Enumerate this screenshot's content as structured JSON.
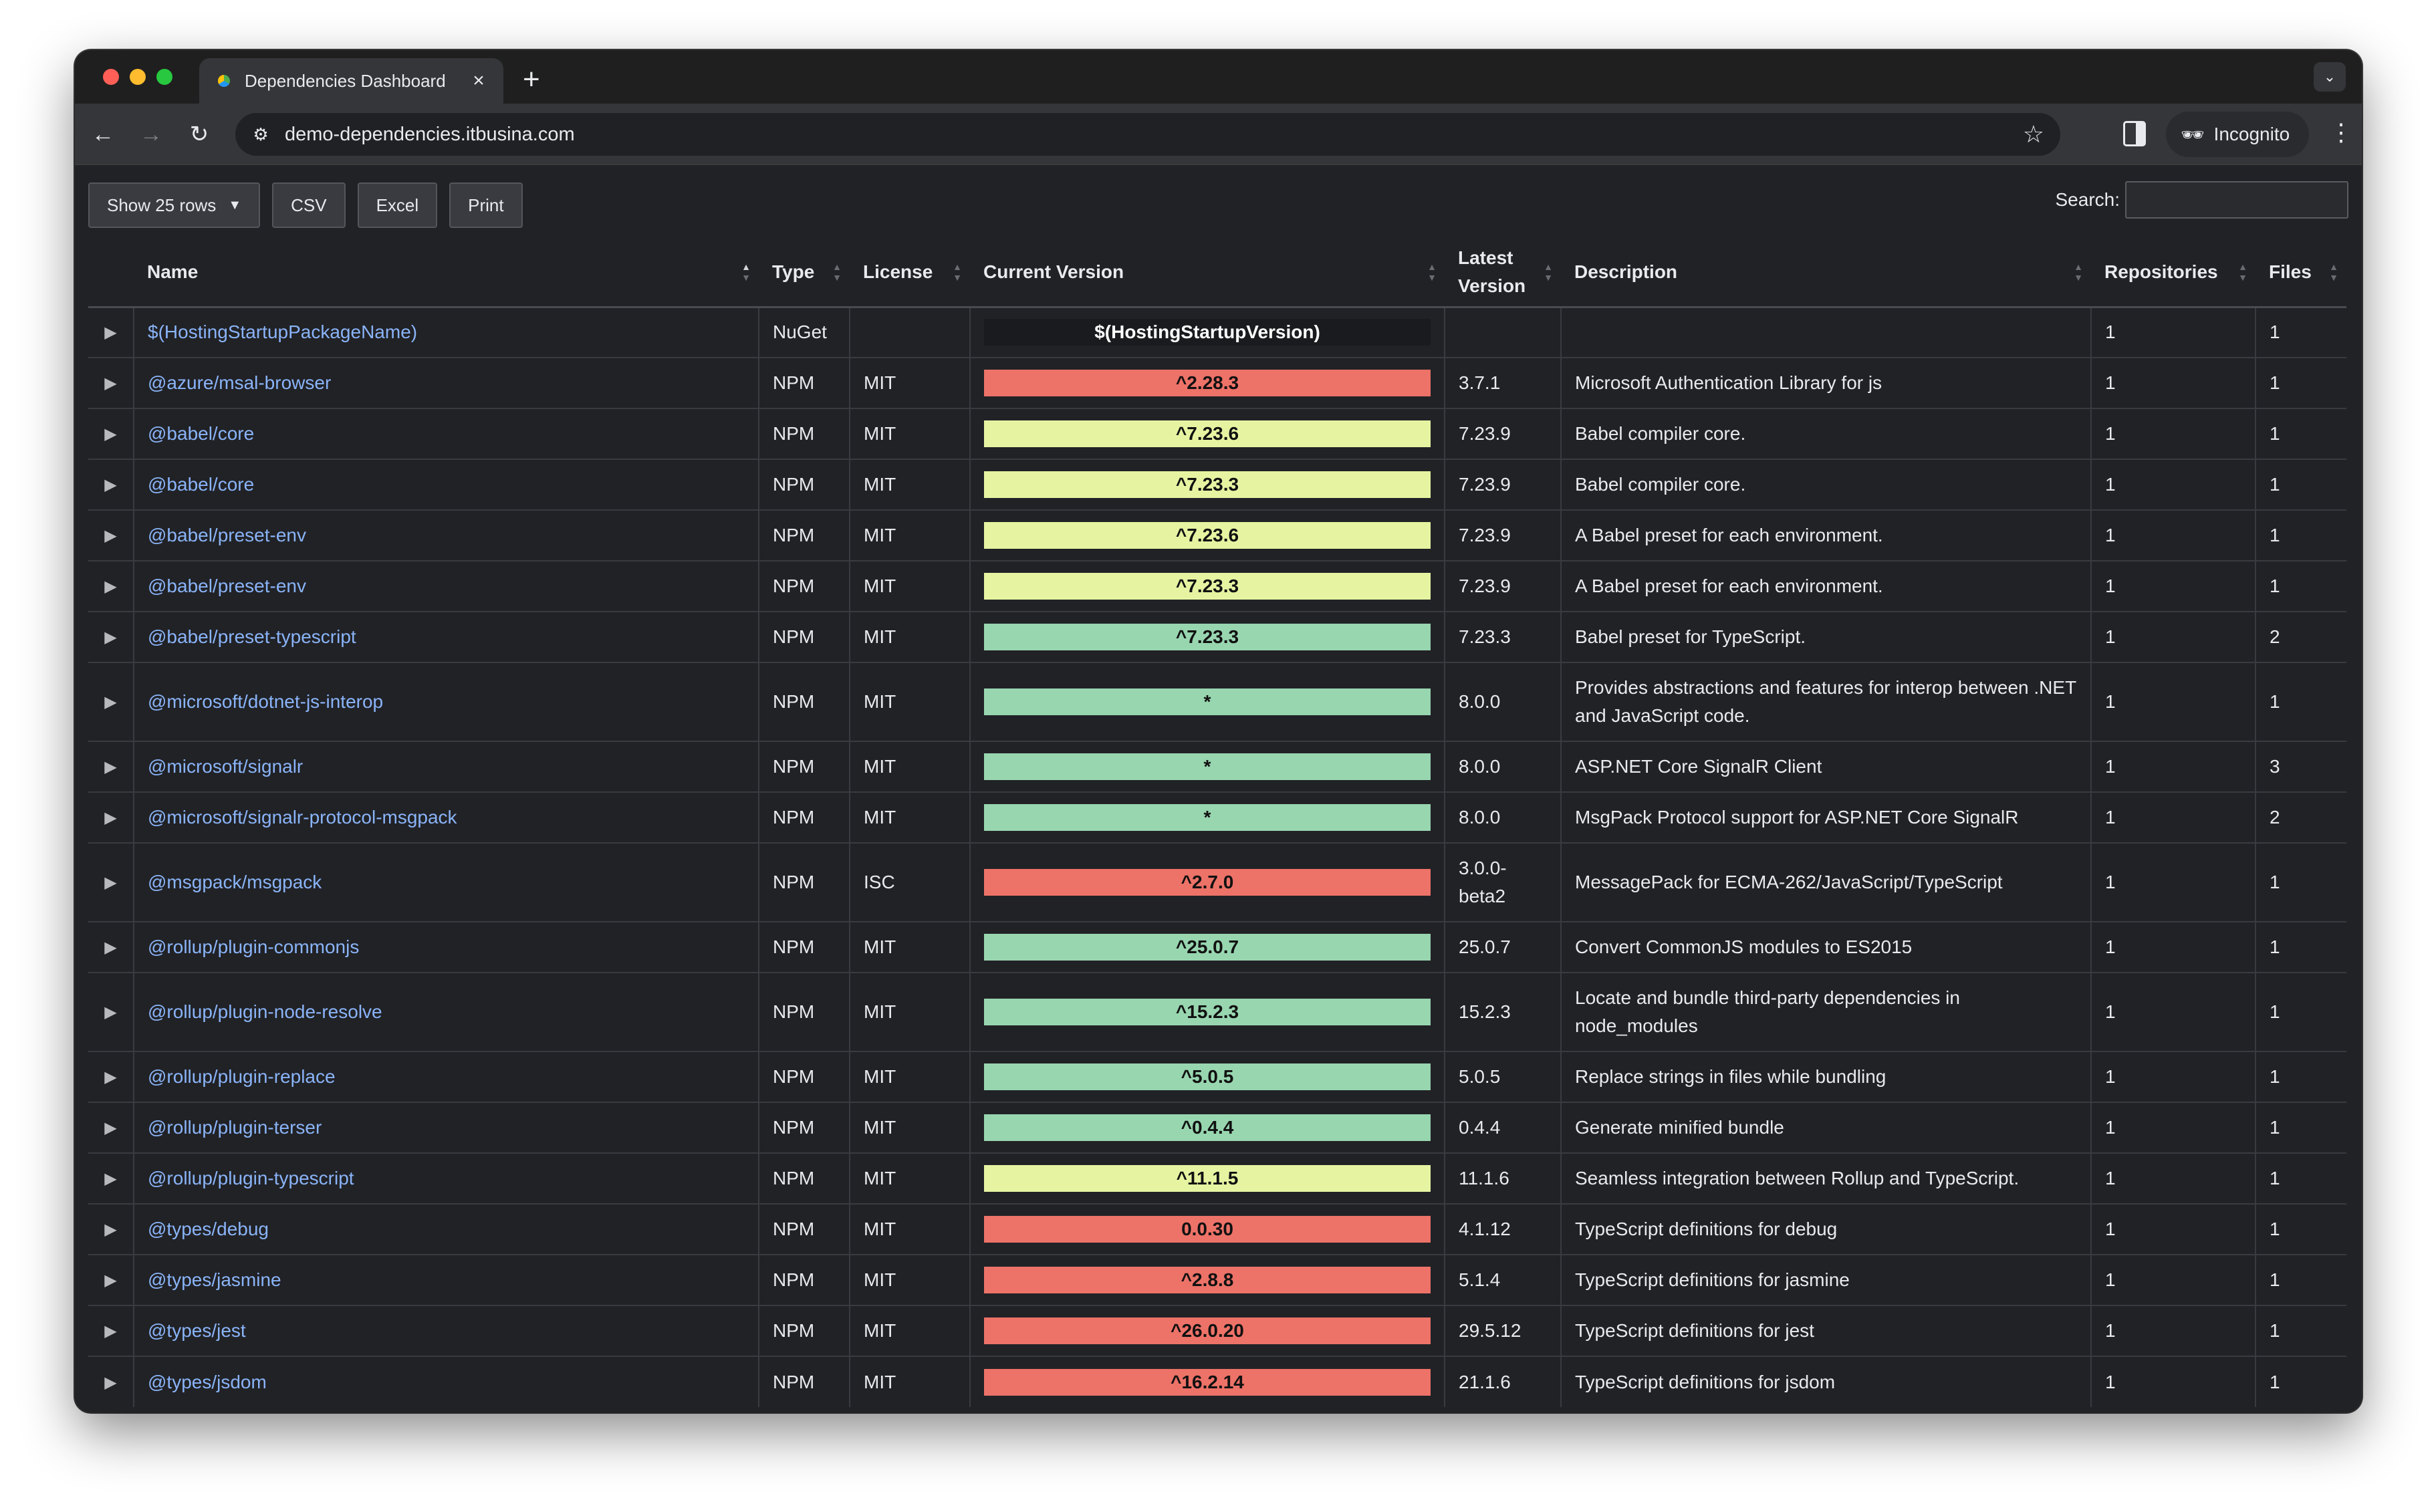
{
  "browser": {
    "tab_title": "Dependencies Dashboard",
    "tab_close": "×",
    "new_tab": "+",
    "url": "demo-dependencies.itbusina.com",
    "profile_label": "Incognito"
  },
  "toolbar": {
    "show_rows_label": "Show 25 rows",
    "csv_label": "CSV",
    "excel_label": "Excel",
    "print_label": "Print",
    "search_label": "Search:",
    "search_value": ""
  },
  "table": {
    "headers": {
      "name": "Name",
      "type": "Type",
      "license": "License",
      "current_version": "Current Version",
      "latest_version": "Latest Version",
      "description": "Description",
      "repositories": "Repositories",
      "files": "Files"
    },
    "status_colors": {
      "outdated": "#ed7268",
      "minor": "#e6f4a2",
      "current": "#98d6b0",
      "unknown": "#1a1b1e"
    },
    "rows": [
      {
        "name": "$(HostingStartupPackageName)",
        "type": "NuGet",
        "license": "",
        "current": "$(HostingStartupVersion)",
        "status": "unknown",
        "latest": "",
        "description": "",
        "repos": "1",
        "files": "1"
      },
      {
        "name": "@azure/msal-browser",
        "type": "NPM",
        "license": "MIT",
        "current": "^2.28.3",
        "status": "outdated",
        "latest": "3.7.1",
        "description": "Microsoft Authentication Library for js",
        "repos": "1",
        "files": "1"
      },
      {
        "name": "@babel/core",
        "type": "NPM",
        "license": "MIT",
        "current": "^7.23.6",
        "status": "minor",
        "latest": "7.23.9",
        "description": "Babel compiler core.",
        "repos": "1",
        "files": "1"
      },
      {
        "name": "@babel/core",
        "type": "NPM",
        "license": "MIT",
        "current": "^7.23.3",
        "status": "minor",
        "latest": "7.23.9",
        "description": "Babel compiler core.",
        "repos": "1",
        "files": "1"
      },
      {
        "name": "@babel/preset-env",
        "type": "NPM",
        "license": "MIT",
        "current": "^7.23.6",
        "status": "minor",
        "latest": "7.23.9",
        "description": "A Babel preset for each environment.",
        "repos": "1",
        "files": "1"
      },
      {
        "name": "@babel/preset-env",
        "type": "NPM",
        "license": "MIT",
        "current": "^7.23.3",
        "status": "minor",
        "latest": "7.23.9",
        "description": "A Babel preset for each environment.",
        "repos": "1",
        "files": "1"
      },
      {
        "name": "@babel/preset-typescript",
        "type": "NPM",
        "license": "MIT",
        "current": "^7.23.3",
        "status": "current",
        "latest": "7.23.3",
        "description": "Babel preset for TypeScript.",
        "repos": "1",
        "files": "2"
      },
      {
        "name": "@microsoft/dotnet-js-interop",
        "type": "NPM",
        "license": "MIT",
        "current": "*",
        "status": "current",
        "latest": "8.0.0",
        "description": "Provides abstractions and features for interop between .NET and JavaScript code.",
        "repos": "1",
        "files": "1",
        "tall": true
      },
      {
        "name": "@microsoft/signalr",
        "type": "NPM",
        "license": "MIT",
        "current": "*",
        "status": "current",
        "latest": "8.0.0",
        "description": "ASP.NET Core SignalR Client",
        "repos": "1",
        "files": "3"
      },
      {
        "name": "@microsoft/signalr-protocol-msgpack",
        "type": "NPM",
        "license": "MIT",
        "current": "*",
        "status": "current",
        "latest": "8.0.0",
        "description": "MsgPack Protocol support for ASP.NET Core SignalR",
        "repos": "1",
        "files": "2"
      },
      {
        "name": "@msgpack/msgpack",
        "type": "NPM",
        "license": "ISC",
        "current": "^2.7.0",
        "status": "outdated",
        "latest": "3.0.0-beta2",
        "description": "MessagePack for ECMA-262/JavaScript/TypeScript",
        "repos": "1",
        "files": "1",
        "tall": true
      },
      {
        "name": "@rollup/plugin-commonjs",
        "type": "NPM",
        "license": "MIT",
        "current": "^25.0.7",
        "status": "current",
        "latest": "25.0.7",
        "description": "Convert CommonJS modules to ES2015",
        "repos": "1",
        "files": "1"
      },
      {
        "name": "@rollup/plugin-node-resolve",
        "type": "NPM",
        "license": "MIT",
        "current": "^15.2.3",
        "status": "current",
        "latest": "15.2.3",
        "description": "Locate and bundle third-party dependencies in node_modules",
        "repos": "1",
        "files": "1",
        "tall": true
      },
      {
        "name": "@rollup/plugin-replace",
        "type": "NPM",
        "license": "MIT",
        "current": "^5.0.5",
        "status": "current",
        "latest": "5.0.5",
        "description": "Replace strings in files while bundling",
        "repos": "1",
        "files": "1"
      },
      {
        "name": "@rollup/plugin-terser",
        "type": "NPM",
        "license": "MIT",
        "current": "^0.4.4",
        "status": "current",
        "latest": "0.4.4",
        "description": "Generate minified bundle",
        "repos": "1",
        "files": "1"
      },
      {
        "name": "@rollup/plugin-typescript",
        "type": "NPM",
        "license": "MIT",
        "current": "^11.1.5",
        "status": "minor",
        "latest": "11.1.6",
        "description": "Seamless integration between Rollup and TypeScript.",
        "repos": "1",
        "files": "1"
      },
      {
        "name": "@types/debug",
        "type": "NPM",
        "license": "MIT",
        "current": "0.0.30",
        "status": "outdated",
        "latest": "4.1.12",
        "description": "TypeScript definitions for debug",
        "repos": "1",
        "files": "1"
      },
      {
        "name": "@types/jasmine",
        "type": "NPM",
        "license": "MIT",
        "current": "^2.8.8",
        "status": "outdated",
        "latest": "5.1.4",
        "description": "TypeScript definitions for jasmine",
        "repos": "1",
        "files": "1"
      },
      {
        "name": "@types/jest",
        "type": "NPM",
        "license": "MIT",
        "current": "^26.0.20",
        "status": "outdated",
        "latest": "29.5.12",
        "description": "TypeScript definitions for jest",
        "repos": "1",
        "files": "1"
      },
      {
        "name": "@types/jsdom",
        "type": "NPM",
        "license": "MIT",
        "current": "^16.2.14",
        "status": "outdated",
        "latest": "21.1.6",
        "description": "TypeScript definitions for jsdom",
        "repos": "1",
        "files": "1"
      }
    ]
  }
}
